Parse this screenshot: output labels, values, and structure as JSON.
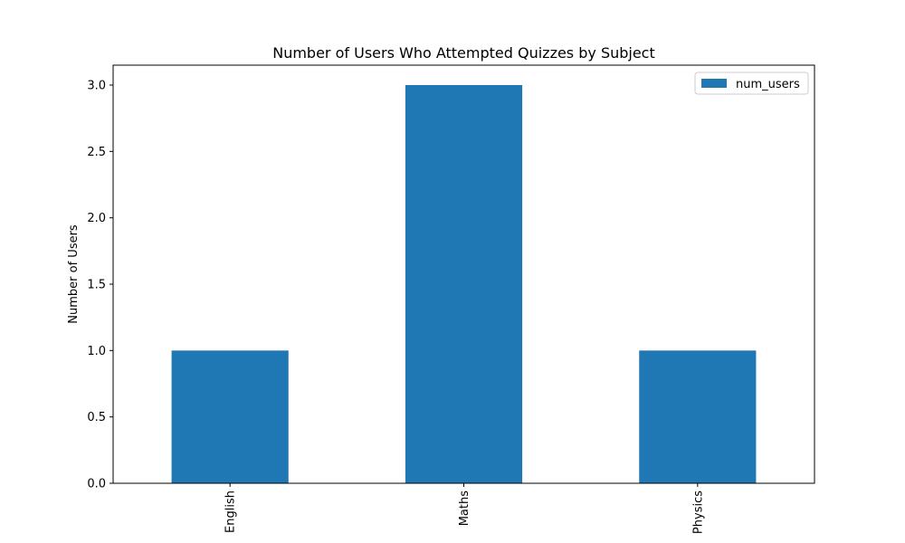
{
  "chart_data": {
    "type": "bar",
    "title": "Number of Users Who Attempted Quizzes by Subject",
    "xlabel": "",
    "ylabel": "Number of Users",
    "categories": [
      "English",
      "Maths",
      "Physics"
    ],
    "series": [
      {
        "name": "num_users",
        "values": [
          1,
          3,
          1
        ],
        "color": "#1f77b4"
      }
    ],
    "ylim": [
      0,
      3.15
    ],
    "yticks": [
      0.0,
      0.5,
      1.0,
      1.5,
      2.0,
      2.5,
      3.0
    ],
    "ytick_labels": [
      "0.0",
      "0.5",
      "1.0",
      "1.5",
      "2.0",
      "2.5",
      "3.0"
    ],
    "grid": false,
    "legend_position": "top-right"
  }
}
